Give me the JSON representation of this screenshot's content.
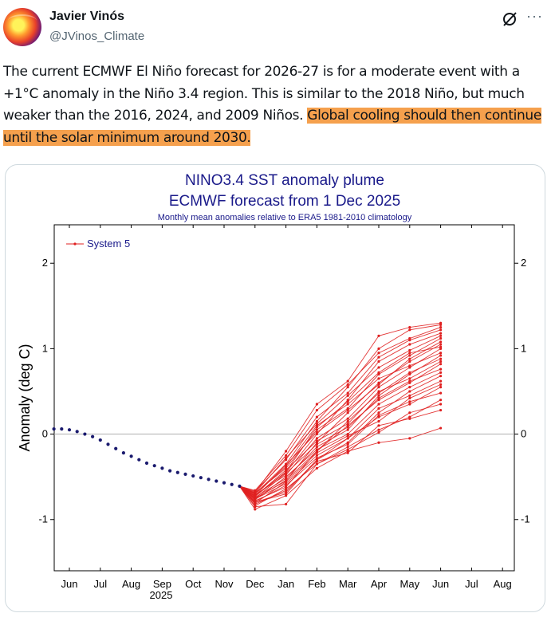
{
  "author": {
    "name": "Javier Vinós",
    "handle": "@JVinos_Climate",
    "avatar_icon": "avatar-image"
  },
  "actions": {
    "grok_icon": "grok-icon",
    "more_icon": "more-icon",
    "more_label": "···"
  },
  "tweet": {
    "text_plain": "The current ECMWF El Niño forecast for 2026-27 is for a moderate event with a +1°C anomaly in the Niño 3.4 region. This is similar to the 2018 Niño, but much weaker than the 2016, 2024, and 2009 Niños. ",
    "text_highlight": "Global cooling should then continue until the solar minimum around 2030.",
    "highlight_color": "#f5a04d"
  },
  "chart_data": {
    "type": "line",
    "title": "NINO3.4 SST anomaly plume",
    "subtitle": "ECMWF forecast from 1 Dec 2025",
    "note": "Monthly mean anomalies relative to ERA5 1981-2010 climatology",
    "ylabel": "Anomaly (deg C)",
    "xlabel": "",
    "year_label": "2025",
    "ylim": [
      -1.6,
      2.45
    ],
    "yticks": [
      -1,
      0,
      1,
      2
    ],
    "ytick_labels": [
      "-1",
      "0",
      "1",
      "2"
    ],
    "x_labels": [
      "Jun",
      "Jul",
      "Aug",
      "Sep",
      "Oct",
      "Nov",
      "Dec",
      "Jan",
      "Feb",
      "Mar",
      "Apr",
      "May",
      "Jun",
      "Jul",
      "Aug"
    ],
    "legend": {
      "label": "System 5",
      "position": "top-left",
      "color": "#e02020"
    },
    "observed": {
      "color": "#1a1a6e",
      "x": [
        -0.5,
        -0.25,
        0,
        0.25,
        0.5,
        0.75,
        1,
        1.25,
        1.5,
        1.75,
        2,
        2.25,
        2.5,
        2.75,
        3,
        3.25,
        3.5,
        3.75,
        4,
        4.25,
        4.5,
        4.75,
        5,
        5.25,
        5.5
      ],
      "y": [
        0.06,
        0.06,
        0.05,
        0.03,
        0.0,
        -0.03,
        -0.07,
        -0.12,
        -0.17,
        -0.22,
        -0.26,
        -0.3,
        -0.34,
        -0.37,
        -0.4,
        -0.43,
        -0.45,
        -0.47,
        -0.49,
        -0.51,
        -0.53,
        -0.55,
        -0.57,
        -0.59,
        -0.61
      ]
    },
    "plume": {
      "color": "#e02020",
      "start_x": 5.5,
      "start_y": -0.61,
      "members_x": [
        6,
        7,
        8,
        9,
        10,
        11,
        12
      ],
      "members": [
        [
          -0.85,
          -0.82,
          -0.35,
          -0.15,
          0.05,
          0.2,
          0.4
        ],
        [
          -0.8,
          -0.7,
          -0.3,
          -0.05,
          0.2,
          0.35,
          0.55
        ],
        [
          -0.78,
          -0.62,
          -0.2,
          0.1,
          0.4,
          0.6,
          0.82
        ],
        [
          -0.75,
          -0.55,
          -0.1,
          0.25,
          0.6,
          0.85,
          1.05
        ],
        [
          -0.72,
          -0.45,
          0.0,
          0.4,
          0.85,
          1.05,
          1.18
        ],
        [
          -0.7,
          -0.35,
          0.15,
          0.55,
          1.0,
          1.22,
          1.28
        ],
        [
          -0.68,
          -0.2,
          0.35,
          0.62,
          1.15,
          1.25,
          1.3
        ],
        [
          -0.88,
          -0.72,
          -0.4,
          -0.2,
          -0.1,
          -0.05,
          0.07
        ],
        [
          -0.82,
          -0.66,
          -0.32,
          -0.22,
          0.1,
          0.18,
          0.28
        ],
        [
          -0.76,
          -0.58,
          -0.25,
          -0.05,
          0.3,
          0.45,
          0.62
        ],
        [
          -0.74,
          -0.52,
          -0.15,
          0.05,
          0.45,
          0.7,
          0.92
        ],
        [
          -0.71,
          -0.48,
          -0.05,
          0.18,
          0.55,
          0.78,
          1.0
        ],
        [
          -0.69,
          -0.4,
          0.05,
          0.3,
          0.7,
          0.92,
          1.12
        ],
        [
          -0.67,
          -0.3,
          0.2,
          0.48,
          0.9,
          1.1,
          1.22
        ],
        [
          -0.79,
          -0.6,
          -0.28,
          -0.12,
          0.22,
          0.38,
          0.48
        ],
        [
          -0.77,
          -0.5,
          -0.18,
          0.0,
          0.35,
          0.55,
          0.72
        ],
        [
          -0.73,
          -0.42,
          -0.08,
          0.12,
          0.5,
          0.65,
          0.85
        ],
        [
          -0.7,
          -0.38,
          0.1,
          0.35,
          0.65,
          0.8,
          0.95
        ],
        [
          -0.84,
          -0.64,
          -0.35,
          -0.18,
          0.02,
          0.25,
          0.35
        ],
        [
          -0.81,
          -0.56,
          -0.22,
          -0.02,
          0.15,
          0.42,
          0.58
        ],
        [
          -0.75,
          -0.46,
          -0.12,
          0.08,
          0.42,
          0.62,
          0.76
        ],
        [
          -0.72,
          -0.36,
          0.02,
          0.28,
          0.58,
          0.88,
          1.08
        ],
        [
          -0.69,
          -0.28,
          0.12,
          0.45,
          0.78,
          0.98,
          1.15
        ],
        [
          -0.66,
          -0.25,
          0.28,
          0.58,
          0.95,
          1.12,
          1.25
        ],
        [
          -0.8,
          -0.68,
          -0.3,
          -0.1,
          0.25,
          0.5,
          0.68
        ],
        [
          -0.76,
          -0.54,
          -0.2,
          0.15,
          0.48,
          0.72,
          0.88
        ],
        [
          -0.73,
          -0.44,
          0.08,
          0.38,
          0.72,
          0.95,
          1.02
        ]
      ]
    }
  }
}
